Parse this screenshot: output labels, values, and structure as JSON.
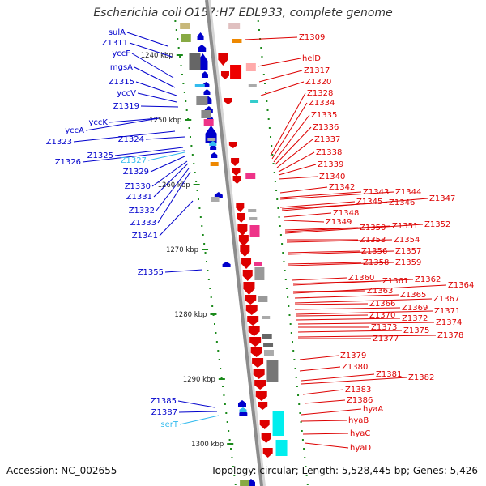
{
  "title": "Escherichia coli O157:H7 EDL933, complete genome",
  "footer": {
    "accession": "Accession: NC_002655",
    "topology": "Topology: circular; Length: 5,528,445 bp; Genes: 5,426"
  },
  "colors": {
    "forward_strand": "#0000cc",
    "reverse_strand": "#dd0000",
    "rna_gene": "#33bbee",
    "tick_marks": "#1b8a1b",
    "backbone": "#8c8c8c"
  },
  "kbp_marks": [
    "1240 kbp",
    "1250 kbp",
    "1260 kbp",
    "1270 kbp",
    "1280 kbp",
    "1290 kbp",
    "1300 kbp"
  ],
  "left_labels": [
    "sulA",
    "Z1311",
    "yccF",
    "mgsA",
    "Z1315",
    "yccV",
    "Z1319",
    "yccK",
    "yccA",
    "Z1323",
    "Z1324",
    "Z1325",
    "Z1326",
    "Z1327",
    "Z1329",
    "Z1330",
    "Z1331",
    "Z1332",
    "Z1333",
    "Z1341",
    "Z1355",
    "Z1385",
    "Z1387",
    "serT"
  ],
  "right_labels": [
    "Z1309",
    "helD",
    "Z1317",
    "Z1320",
    "Z1328",
    "Z1334",
    "Z1335",
    "Z1336",
    "Z1337",
    "Z1338",
    "Z1339",
    "Z1340",
    "Z1342",
    "Z1343",
    "Z1344",
    "Z1345",
    "Z1346",
    "Z1347",
    "Z1348",
    "Z1349",
    "Z1350",
    "Z1351",
    "Z1352",
    "Z1353",
    "Z1354",
    "Z1356",
    "Z1357",
    "Z1358",
    "Z1359",
    "Z1360",
    "Z1361",
    "Z1362",
    "Z1363",
    "Z1364",
    "Z1365",
    "Z1366",
    "Z1367",
    "Z1369",
    "Z1370",
    "Z1371",
    "Z1372",
    "Z1373",
    "Z1374",
    "Z1375",
    "Z1377",
    "Z1378",
    "Z1379",
    "Z1380",
    "Z1381",
    "Z1382",
    "Z1383",
    "Z1386",
    "hyaA",
    "hyaB",
    "hyaC",
    "hyaD"
  ]
}
